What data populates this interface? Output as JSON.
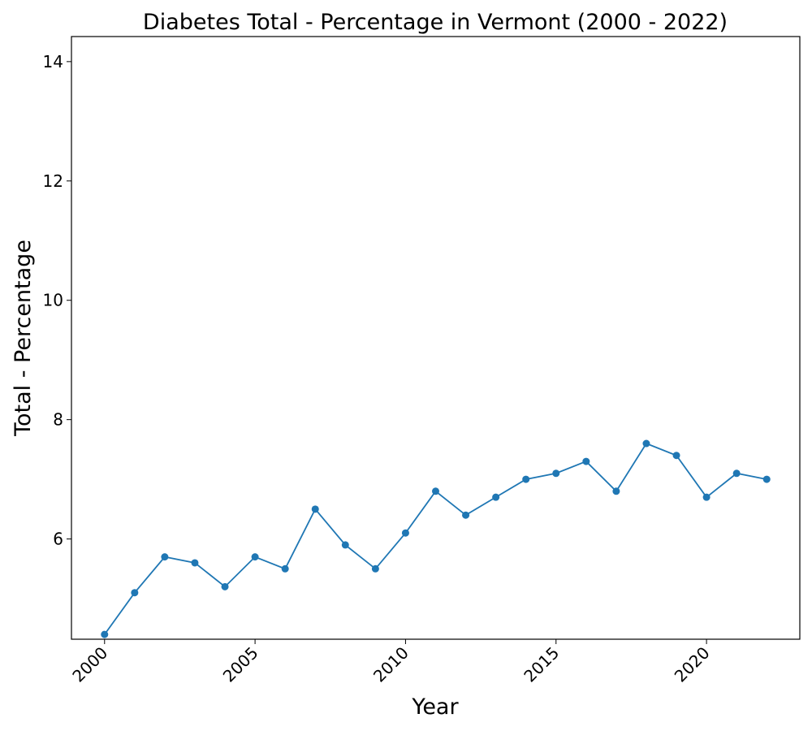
{
  "chart_data": {
    "type": "line",
    "title": "Diabetes Total - Percentage in Vermont (2000 - 2022)",
    "xlabel": "Year",
    "ylabel": "Total - Percentage",
    "x": [
      2000,
      2001,
      2002,
      2003,
      2004,
      2005,
      2006,
      2007,
      2008,
      2009,
      2010,
      2011,
      2012,
      2013,
      2014,
      2015,
      2016,
      2017,
      2018,
      2019,
      2020,
      2021,
      2022
    ],
    "series": [
      {
        "values": [
          4.4,
          5.1,
          5.7,
          5.6,
          5.2,
          5.7,
          5.5,
          6.5,
          5.9,
          5.5,
          6.1,
          6.8,
          6.4,
          6.7,
          7.0,
          7.1,
          7.3,
          6.8,
          7.6,
          7.4,
          6.7,
          7.1,
          7.0
        ],
        "color": "#1f77b4"
      }
    ],
    "xlim": [
      1998.9,
      2023.1
    ],
    "ylim": [
      4.32,
      14.42
    ],
    "xticks": [
      2000,
      2005,
      2010,
      2015,
      2020
    ],
    "yticks": [
      6,
      8,
      10,
      12,
      14
    ],
    "grid": false,
    "marker": "circle"
  }
}
